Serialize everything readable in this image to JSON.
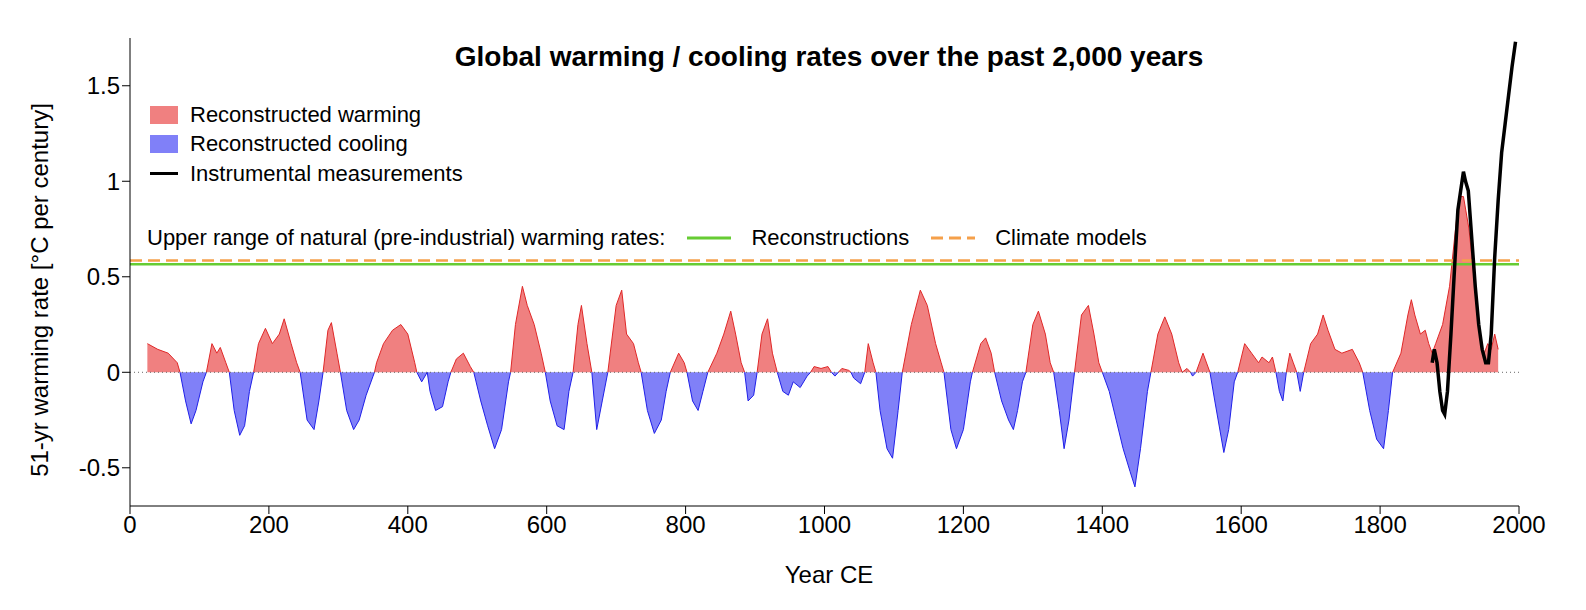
{
  "chart_data": {
    "type": "area",
    "title": "Global warming / cooling rates over the past 2,000 years",
    "x_label": "Year CE",
    "y_label": "51-yr warming rate [°C per century]",
    "xlim": [
      0,
      2000
    ],
    "xticks": [
      0,
      200,
      400,
      600,
      800,
      1000,
      1200,
      1400,
      1600,
      1800,
      2000
    ],
    "ylim": [
      -0.7,
      1.75
    ],
    "yticks": [
      -0.5,
      0,
      0.5,
      1,
      1.5
    ],
    "grid": false,
    "legend": "top-left",
    "x": [
      25,
      40,
      55,
      68,
      72,
      80,
      88,
      95,
      105,
      110,
      118,
      125,
      130,
      138,
      143,
      150,
      158,
      165,
      172,
      178,
      185,
      195,
      205,
      215,
      222,
      232,
      240,
      245,
      255,
      265,
      272,
      278,
      285,
      290,
      298,
      303,
      312,
      322,
      330,
      340,
      350,
      352,
      355,
      365,
      378,
      390,
      400,
      410,
      413,
      420,
      428,
      432,
      440,
      450,
      458,
      462,
      470,
      480,
      490,
      495,
      505,
      515,
      525,
      535,
      545,
      548,
      555,
      565,
      572,
      582,
      592,
      598,
      605,
      615,
      625,
      632,
      638,
      645,
      650,
      658,
      665,
      672,
      680,
      688,
      700,
      708,
      715,
      725,
      732,
      736,
      745,
      755,
      765,
      772,
      778,
      790,
      798,
      802,
      810,
      818,
      825,
      832,
      845,
      855,
      865,
      872,
      880,
      885,
      890,
      898,
      903,
      910,
      918,
      925,
      932,
      940,
      948,
      955,
      965,
      975,
      980,
      985,
      995,
      1005,
      1010,
      1015,
      1020,
      1025,
      1035,
      1038,
      1042,
      1052,
      1058,
      1063,
      1070,
      1074,
      1080,
      1090,
      1098,
      1106,
      1112,
      1125,
      1138,
      1148,
      1160,
      1168,
      1172,
      1182,
      1190,
      1200,
      1210,
      1213,
      1225,
      1232,
      1240,
      1245,
      1255,
      1265,
      1272,
      1278,
      1285,
      1290,
      1300,
      1308,
      1318,
      1325,
      1330,
      1338,
      1345,
      1352,
      1360,
      1370,
      1380,
      1388,
      1395,
      1400,
      1410,
      1420,
      1430,
      1440,
      1447,
      1455,
      1465,
      1470,
      1480,
      1490,
      1500,
      1510,
      1515,
      1522,
      1527,
      1530,
      1535,
      1545,
      1555,
      1562,
      1575,
      1582,
      1590,
      1595,
      1605,
      1615,
      1625,
      1630,
      1640,
      1645,
      1650,
      1655,
      1660,
      1665,
      1670,
      1675,
      1680,
      1685,
      1690,
      1700,
      1710,
      1718,
      1725,
      1735,
      1745,
      1760,
      1770,
      1775,
      1785,
      1795,
      1805,
      1812,
      1818,
      1830,
      1840,
      1845,
      1850,
      1858,
      1865,
      1870,
      1875,
      1880,
      1890,
      1900,
      1910,
      1915,
      1920,
      1928,
      1935,
      1940,
      1945,
      1950,
      1955,
      1960,
      1965,
      1970
    ],
    "series": [
      {
        "name": "Reconstructed warming",
        "type": "area",
        "color": "#f08080",
        "values": [
          0.15,
          0.12,
          0.1,
          0.05,
          0,
          null,
          null,
          null,
          null,
          0,
          0.15,
          0.1,
          0.13,
          0.05,
          0,
          null,
          null,
          null,
          null,
          0,
          0.15,
          0.23,
          0.15,
          0.2,
          0.28,
          0.15,
          0.05,
          0,
          null,
          null,
          null,
          0,
          0.22,
          0.26,
          0.1,
          0,
          null,
          null,
          null,
          null,
          null,
          0,
          0.05,
          0.15,
          0.22,
          0.25,
          0.2,
          0.05,
          0,
          null,
          0,
          null,
          null,
          null,
          null,
          0,
          0.07,
          0.1,
          0.03,
          0,
          null,
          null,
          null,
          null,
          null,
          0,
          0.25,
          0.45,
          0.35,
          0.25,
          0.1,
          0,
          null,
          null,
          null,
          null,
          0,
          0.25,
          0.35,
          0.15,
          0,
          null,
          null,
          0,
          0.35,
          0.43,
          0.2,
          0.15,
          0.05,
          0,
          null,
          null,
          null,
          null,
          0,
          0.1,
          0.05,
          0,
          null,
          null,
          null,
          0,
          0.1,
          0.2,
          0.32,
          0.2,
          0.05,
          0,
          null,
          null,
          0,
          0.2,
          0.28,
          0.1,
          0,
          null,
          null,
          null,
          null,
          null,
          0,
          0.03,
          0.02,
          0.03,
          0,
          null,
          0,
          0.02,
          0.01,
          0,
          null,
          null,
          0,
          0.15,
          0.05,
          0,
          null,
          null,
          null,
          null,
          0,
          0.25,
          0.43,
          0.35,
          0.15,
          0.05,
          0,
          null,
          null,
          null,
          null,
          0,
          0.15,
          0.18,
          0.1,
          0,
          null,
          null,
          null,
          null,
          null,
          0,
          0.25,
          0.32,
          0.2,
          0.05,
          0,
          null,
          null,
          null,
          0,
          0.3,
          0.35,
          0.2,
          0.05,
          0,
          null,
          null,
          null,
          null,
          null,
          null,
          null,
          0,
          0.2,
          0.29,
          0.2,
          0.05,
          0,
          0.02,
          0,
          null,
          0,
          0.1,
          0,
          null,
          null,
          null,
          null,
          0,
          0.15,
          0.1,
          0.05,
          0.08,
          0.05,
          0.08,
          0,
          null,
          null,
          0,
          0.1,
          0.05,
          0,
          null,
          0,
          0.15,
          0.2,
          0.3,
          0.22,
          0.12,
          0.1,
          0.12,
          0.05,
          0,
          null,
          null,
          null,
          null,
          0,
          0.1,
          0.3,
          0.38,
          0.3,
          0.2,
          0.22,
          0.15,
          0.1,
          0.15,
          0.25,
          0.45,
          0.8,
          0.92,
          0.92,
          0.75,
          0.5,
          0.3,
          0.15,
          0.1,
          0.15,
          0.12,
          0.2,
          0.12
        ]
      },
      {
        "name": "Reconstructed cooling",
        "type": "area",
        "color": "#8080f8",
        "values": [
          null,
          null,
          null,
          null,
          0,
          -0.15,
          -0.27,
          -0.2,
          -0.05,
          0,
          null,
          null,
          null,
          null,
          0,
          -0.2,
          -0.33,
          -0.28,
          -0.1,
          0,
          null,
          null,
          null,
          null,
          null,
          null,
          null,
          0,
          -0.25,
          -0.3,
          -0.15,
          0,
          null,
          null,
          null,
          0,
          -0.2,
          -0.3,
          -0.25,
          -0.12,
          -0.02,
          0,
          null,
          null,
          null,
          null,
          null,
          null,
          0,
          -0.05,
          0,
          -0.1,
          -0.2,
          -0.18,
          -0.05,
          0,
          null,
          null,
          null,
          0,
          -0.15,
          -0.28,
          -0.4,
          -0.3,
          -0.05,
          0,
          null,
          null,
          null,
          null,
          null,
          0,
          -0.15,
          -0.28,
          -0.3,
          -0.1,
          0,
          null,
          null,
          null,
          0,
          -0.3,
          -0.15,
          0,
          null,
          null,
          null,
          null,
          null,
          0,
          -0.2,
          -0.32,
          -0.25,
          -0.1,
          0,
          null,
          null,
          0,
          -0.15,
          -0.2,
          -0.1,
          0,
          null,
          null,
          null,
          null,
          null,
          0,
          -0.15,
          -0.12,
          0,
          null,
          null,
          null,
          0,
          -0.1,
          -0.12,
          -0.05,
          -0.08,
          -0.02,
          0,
          null,
          null,
          null,
          0,
          -0.02,
          0,
          null,
          null,
          0,
          -0.03,
          -0.06,
          0,
          null,
          null,
          0,
          -0.2,
          -0.4,
          -0.45,
          -0.2,
          0,
          null,
          null,
          null,
          null,
          null,
          0,
          -0.3,
          -0.4,
          -0.3,
          -0.05,
          0,
          null,
          null,
          null,
          0,
          -0.15,
          -0.25,
          -0.3,
          -0.2,
          -0.05,
          0,
          null,
          null,
          null,
          null,
          0,
          -0.2,
          -0.4,
          -0.25,
          0,
          null,
          null,
          null,
          null,
          0,
          -0.1,
          -0.25,
          -0.4,
          -0.52,
          -0.6,
          -0.4,
          -0.1,
          0,
          null,
          null,
          null,
          null,
          0,
          null,
          0,
          -0.02,
          0,
          null,
          0,
          -0.15,
          -0.42,
          -0.3,
          -0.05,
          0,
          null,
          null,
          null,
          null,
          null,
          null,
          0,
          -0.1,
          -0.15,
          0,
          null,
          null,
          0,
          -0.1,
          0,
          null,
          null,
          null,
          null,
          null,
          null,
          null,
          null,
          0,
          -0.2,
          -0.35,
          -0.4,
          -0.2,
          0,
          null,
          null,
          null,
          null,
          null,
          null,
          null,
          null,
          null,
          null,
          null,
          null,
          null,
          null,
          null,
          null,
          null,
          null,
          null,
          null,
          null,
          null,
          null
        ]
      },
      {
        "name": "Instrumental measurements",
        "type": "line",
        "color": "#000000",
        "x": [
          1875,
          1878,
          1882,
          1886,
          1890,
          1893,
          1897,
          1902,
          1908,
          1912,
          1916,
          1920,
          1923,
          1927,
          1932,
          1937,
          1942,
          1947,
          1952,
          1956,
          1960,
          1965,
          1970,
          1975,
          1980,
          1985,
          1990,
          1995
        ],
        "values": [
          0.05,
          0.12,
          0.05,
          -0.1,
          -0.2,
          -0.22,
          -0.1,
          0.2,
          0.6,
          0.85,
          0.95,
          1.05,
          1,
          0.95,
          0.7,
          0.45,
          0.25,
          0.12,
          0.05,
          0.05,
          0.2,
          0.6,
          0.9,
          1.15,
          1.3,
          1.45,
          1.6,
          1.73
        ]
      }
    ],
    "reference_lines": {
      "label": "Upper range of natural (pre-industrial) warming rates:",
      "lines": [
        {
          "name": "Reconstructions",
          "value": 0.565,
          "color": "#66cc33",
          "line_style": "solid"
        },
        {
          "name": "Climate models",
          "value": 0.585,
          "color": "#f5a04a",
          "line_style": "dashed"
        }
      ]
    }
  }
}
